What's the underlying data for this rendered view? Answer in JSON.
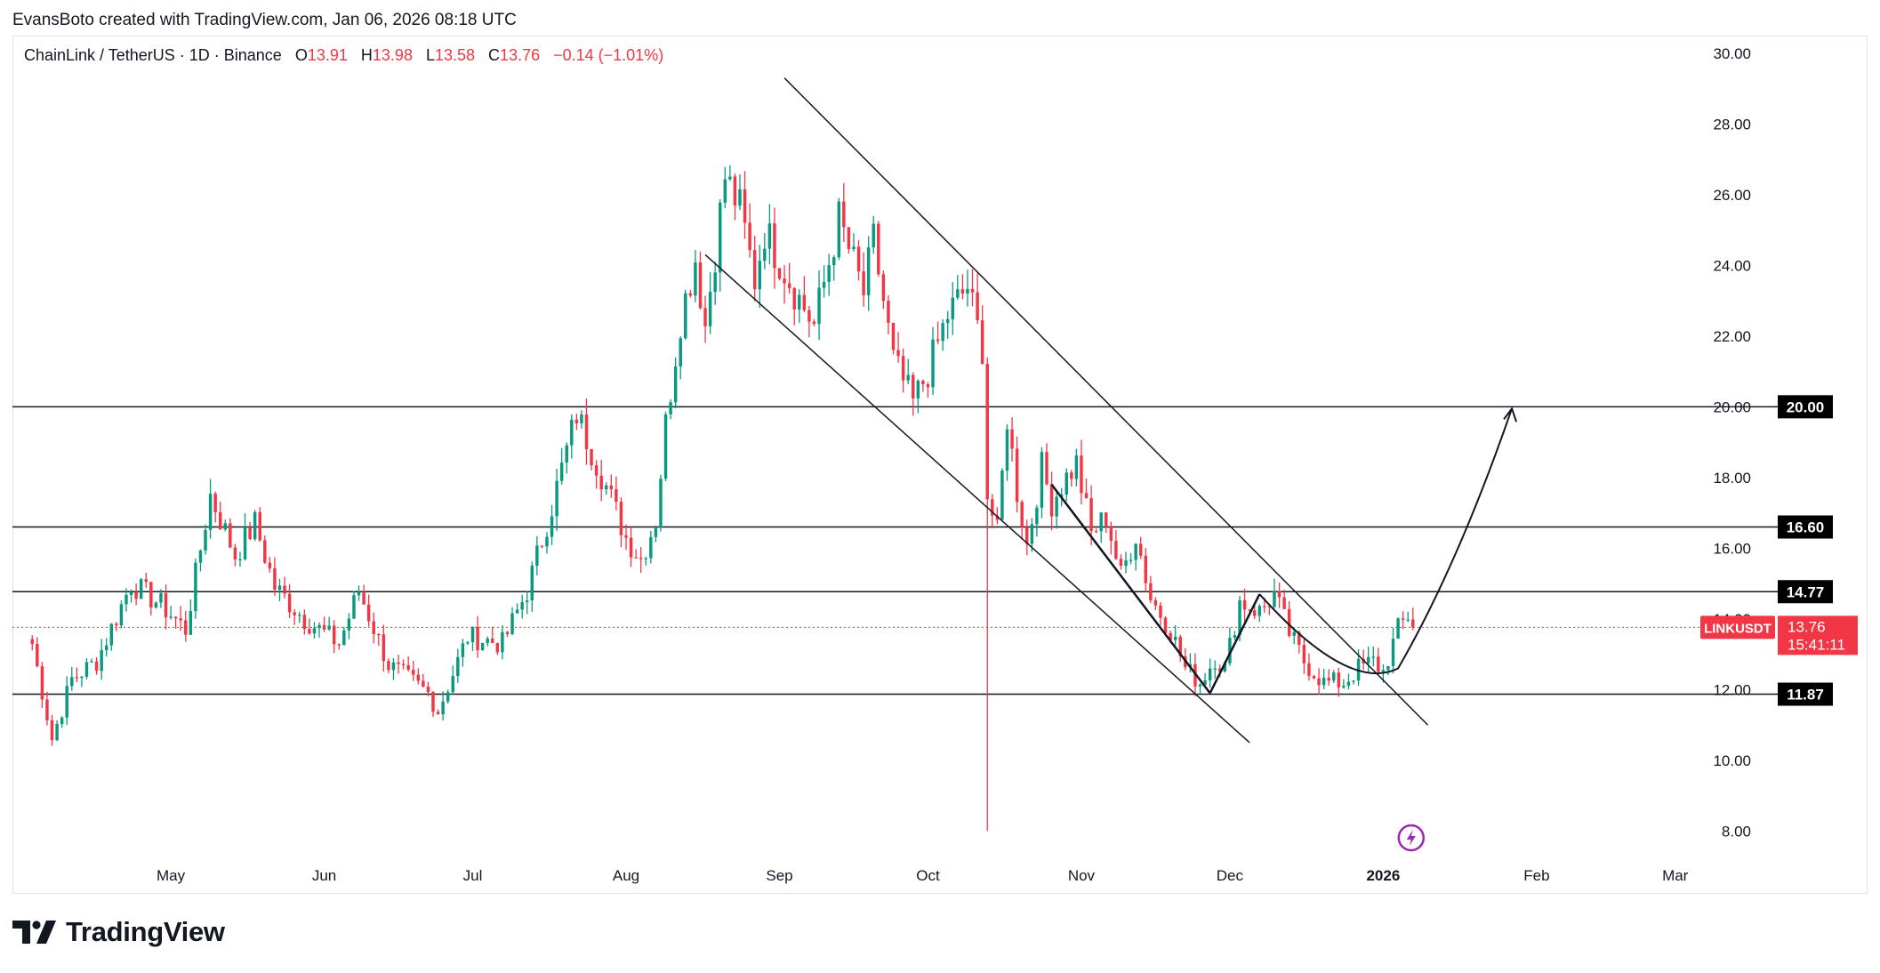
{
  "attribution": "EvansBoto created with TradingView.com, Jan 06, 2026 08:18 UTC",
  "legend": {
    "symbol": "ChainLink / TetherUS · 1D · Binance",
    "open_label": "O",
    "open": "13.91",
    "high_label": "H",
    "high": "13.98",
    "low_label": "L",
    "low": "13.58",
    "close_label": "C",
    "close": "13.76",
    "change": "−0.14 (−1.01%)"
  },
  "brand": "TradingView",
  "colors": {
    "up": "#089981",
    "down": "#f23645",
    "line": "#131722",
    "tag_bg": "#000000"
  },
  "chart_data": {
    "type": "candlestick",
    "symbol": "LINKUSDT",
    "ylim": [
      6.6,
      30.5
    ],
    "y_ticks": [
      "8.00",
      "10.00",
      "12.00",
      "14.00",
      "16.00",
      "18.00",
      "20.00",
      "22.00",
      "24.00",
      "26.00",
      "28.00",
      "30.00"
    ],
    "x_ticks": [
      {
        "label": "May",
        "day": 28
      },
      {
        "label": "Jun",
        "day": 59
      },
      {
        "label": "Jul",
        "day": 89
      },
      {
        "label": "Aug",
        "day": 120
      },
      {
        "label": "Sep",
        "day": 151
      },
      {
        "label": "Oct",
        "day": 181
      },
      {
        "label": "Nov",
        "day": 212
      },
      {
        "label": "Dec",
        "day": 242
      },
      {
        "label": "2026",
        "day": 273,
        "bold": true
      },
      {
        "label": "Feb",
        "day": 304
      },
      {
        "label": "Mar",
        "day": 332
      }
    ],
    "x_range_days": [
      -4,
      352
    ],
    "levels": [
      {
        "value": 20.0,
        "label": "20.00"
      },
      {
        "value": 16.6,
        "label": "16.60"
      },
      {
        "value": 14.77,
        "label": "14.77"
      },
      {
        "value": 11.87,
        "label": "11.87"
      }
    ],
    "current_price": {
      "label": "LINKUSDT",
      "value": "13.76",
      "countdown": "15:41:11"
    },
    "keypoints": [
      [
        0,
        13.3
      ],
      [
        4,
        10.6
      ],
      [
        8,
        12.3
      ],
      [
        13,
        12.8
      ],
      [
        20,
        15.0
      ],
      [
        26,
        14.4
      ],
      [
        31,
        13.7
      ],
      [
        36,
        17.5
      ],
      [
        41,
        15.8
      ],
      [
        45,
        16.7
      ],
      [
        49,
        14.9
      ],
      [
        55,
        14.0
      ],
      [
        62,
        13.3
      ],
      [
        66,
        14.8
      ],
      [
        72,
        12.7
      ],
      [
        80,
        11.9
      ],
      [
        82,
        11.4
      ],
      [
        88,
        13.5
      ],
      [
        95,
        13.3
      ],
      [
        100,
        14.8
      ],
      [
        105,
        17.2
      ],
      [
        110,
        19.8
      ],
      [
        115,
        18.1
      ],
      [
        120,
        16.3
      ],
      [
        123,
        15.7
      ],
      [
        126,
        16.8
      ],
      [
        128,
        19.5
      ],
      [
        131,
        22.5
      ],
      [
        134,
        24.2
      ],
      [
        136,
        22.3
      ],
      [
        140,
        26.5
      ],
      [
        143,
        25.6
      ],
      [
        146,
        23.6
      ],
      [
        148,
        25.0
      ],
      [
        154,
        23.3
      ],
      [
        158,
        22.3
      ],
      [
        163,
        25.3
      ],
      [
        168,
        23.2
      ],
      [
        170,
        24.7
      ],
      [
        174,
        21.3
      ],
      [
        178,
        20.1
      ],
      [
        181,
        21.0
      ],
      [
        185,
        22.6
      ],
      [
        189,
        23.4
      ],
      [
        191,
        22.2
      ],
      [
        192,
        21.7
      ],
      [
        193,
        17.5
      ],
      [
        195,
        16.4
      ],
      [
        197,
        19.7
      ],
      [
        199,
        17.6
      ],
      [
        201,
        16.1
      ],
      [
        204,
        18.3
      ],
      [
        206,
        17.3
      ],
      [
        208,
        17.8
      ],
      [
        211,
        18.4
      ],
      [
        214,
        16.4
      ],
      [
        217,
        16.9
      ],
      [
        220,
        15.2
      ],
      [
        223,
        16.4
      ],
      [
        226,
        14.6
      ],
      [
        230,
        13.7
      ],
      [
        233,
        12.6
      ],
      [
        236,
        12.2
      ],
      [
        239,
        12.9
      ],
      [
        241,
        12.6
      ],
      [
        244,
        14.5
      ],
      [
        248,
        14.2
      ],
      [
        251,
        14.7
      ],
      [
        254,
        13.6
      ],
      [
        257,
        12.8
      ],
      [
        261,
        12.2
      ],
      [
        265,
        12.2
      ],
      [
        268,
        12.6
      ],
      [
        271,
        12.8
      ],
      [
        273,
        12.5
      ],
      [
        276,
        13.7
      ],
      [
        278,
        14.1
      ],
      [
        279,
        13.76
      ]
    ],
    "annotations": {
      "channel_upper": [
        [
          152,
          29.3
        ],
        [
          282,
          11.0
        ]
      ],
      "channel_lower": [
        [
          136,
          24.3
        ],
        [
          246,
          10.5
        ]
      ],
      "trend_short": [
        [
          206,
          17.8
        ],
        [
          238,
          11.9
        ]
      ],
      "rise": [
        [
          238,
          11.9
        ],
        [
          248,
          14.7
        ]
      ],
      "cup": [
        [
          248,
          14.7
        ],
        [
          266,
          11.9
        ],
        [
          276,
          12.6
        ],
        [
          288,
          15.5
        ],
        [
          299,
          19.95
        ]
      ]
    },
    "spike_wick": {
      "day": 193,
      "high": 20.6,
      "low": 8.0
    }
  }
}
